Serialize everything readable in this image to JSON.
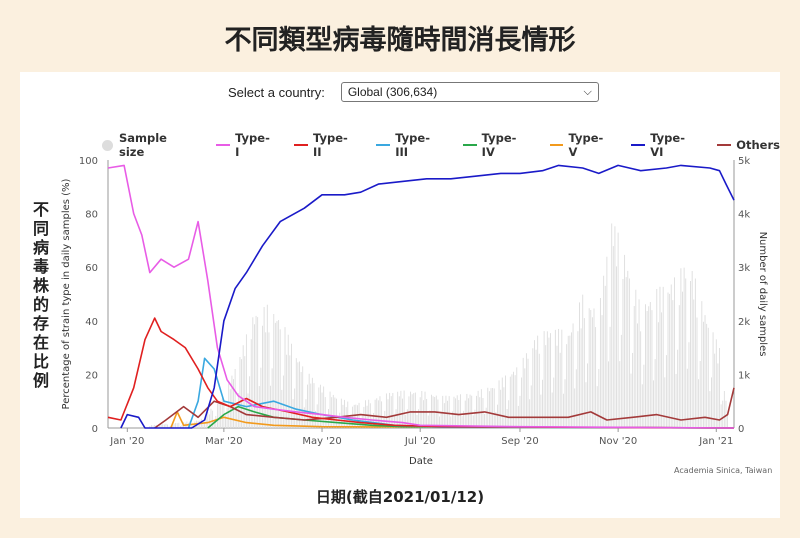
{
  "page_title": "不同類型病毒隨時間消長情形",
  "selector": {
    "label": "Select a country:",
    "value": "Global (306,634)"
  },
  "side_label": [
    "不",
    "同",
    "病",
    "毒",
    "株",
    "的",
    "存",
    "在",
    "比",
    "例"
  ],
  "credit": "Academia Sinica, Taiwan",
  "date_caption": "日期(截自2021/01/12)",
  "colors": {
    "sample_size": "#dddddd",
    "type_i": "#e85ce6",
    "type_ii": "#e02020",
    "type_iii": "#3aa8e0",
    "type_iv": "#2aa84a",
    "type_v": "#f29a1c",
    "type_vi": "#1a1ac8",
    "others": "#a33a3a"
  },
  "chart_data": {
    "type": "line",
    "xlabel": "Date",
    "ylabel_left": "Percentage of strain type in daily samples (%)",
    "ylabel_right": "Number of daily samples",
    "x_range": [
      "2019-12-20",
      "2021-01-12"
    ],
    "y_left_range": [
      0,
      100
    ],
    "y_right_range": [
      0,
      5000
    ],
    "x_ticks": [
      "Jan '20",
      "Mar '20",
      "May '20",
      "Jul '20",
      "Sep '20",
      "Nov '20",
      "Jan '21"
    ],
    "y_left_ticks": [
      "0",
      "20",
      "40",
      "60",
      "80",
      "100"
    ],
    "y_right_ticks": [
      "0",
      "1k",
      "2k",
      "3k",
      "4k",
      "5k"
    ],
    "legend": [
      "Sample size",
      "Type-I",
      "Type-II",
      "Type-III",
      "Type-IV",
      "Type-V",
      "Type-VI",
      "Others"
    ],
    "legend_position": "top",
    "grid": false,
    "series": [
      {
        "name": "Type-I",
        "color_key": "type_i",
        "points": [
          [
            "2019-12-20",
            97
          ],
          [
            "2019-12-30",
            98
          ],
          [
            "2020-01-05",
            80
          ],
          [
            "2020-01-10",
            72
          ],
          [
            "2020-01-15",
            58
          ],
          [
            "2020-01-22",
            63
          ],
          [
            "2020-01-30",
            60
          ],
          [
            "2020-02-08",
            63
          ],
          [
            "2020-02-14",
            77
          ],
          [
            "2020-02-20",
            55
          ],
          [
            "2020-02-26",
            30
          ],
          [
            "2020-03-03",
            18
          ],
          [
            "2020-03-10",
            12
          ],
          [
            "2020-03-20",
            8
          ],
          [
            "2020-04-01",
            7
          ],
          [
            "2020-04-15",
            6
          ],
          [
            "2020-05-01",
            5
          ],
          [
            "2020-05-15",
            4
          ],
          [
            "2020-06-01",
            3
          ],
          [
            "2020-06-20",
            2
          ],
          [
            "2020-07-01",
            1
          ],
          [
            "2020-09-01",
            0.5
          ],
          [
            "2021-01-12",
            0
          ]
        ]
      },
      {
        "name": "Type-II",
        "color_key": "type_ii",
        "points": [
          [
            "2019-12-20",
            4
          ],
          [
            "2019-12-28",
            3
          ],
          [
            "2020-01-05",
            15
          ],
          [
            "2020-01-12",
            33
          ],
          [
            "2020-01-18",
            41
          ],
          [
            "2020-01-22",
            36
          ],
          [
            "2020-01-30",
            33
          ],
          [
            "2020-02-06",
            30
          ],
          [
            "2020-02-14",
            22
          ],
          [
            "2020-02-20",
            15
          ],
          [
            "2020-02-26",
            10
          ],
          [
            "2020-03-05",
            8
          ],
          [
            "2020-03-15",
            11
          ],
          [
            "2020-03-25",
            8
          ],
          [
            "2020-04-10",
            6
          ],
          [
            "2020-04-25",
            4
          ],
          [
            "2020-05-10",
            3
          ],
          [
            "2020-05-25",
            2
          ],
          [
            "2020-06-15",
            1
          ],
          [
            "2020-07-15",
            0.5
          ],
          [
            "2021-01-12",
            0
          ]
        ]
      },
      {
        "name": "Type-III",
        "color_key": "type_iii",
        "points": [
          [
            "2020-02-08",
            0
          ],
          [
            "2020-02-14",
            10
          ],
          [
            "2020-02-18",
            26
          ],
          [
            "2020-02-24",
            22
          ],
          [
            "2020-03-01",
            10
          ],
          [
            "2020-03-15",
            8
          ],
          [
            "2020-04-01",
            10
          ],
          [
            "2020-04-15",
            7
          ],
          [
            "2020-05-01",
            5
          ],
          [
            "2020-05-20",
            3
          ],
          [
            "2020-06-15",
            1
          ],
          [
            "2020-07-15",
            0.3
          ],
          [
            "2021-01-12",
            0
          ]
        ]
      },
      {
        "name": "Type-IV",
        "color_key": "type_iv",
        "points": [
          [
            "2020-02-20",
            0
          ],
          [
            "2020-03-01",
            5
          ],
          [
            "2020-03-10",
            8
          ],
          [
            "2020-03-20",
            6
          ],
          [
            "2020-04-01",
            4
          ],
          [
            "2020-04-20",
            3
          ],
          [
            "2020-05-10",
            2
          ],
          [
            "2020-06-01",
            1
          ],
          [
            "2020-06-20",
            0.5
          ],
          [
            "2021-01-12",
            0
          ]
        ]
      },
      {
        "name": "Type-V",
        "color_key": "type_v",
        "points": [
          [
            "2020-01-28",
            0
          ],
          [
            "2020-02-01",
            6
          ],
          [
            "2020-02-05",
            1
          ],
          [
            "2020-02-20",
            2
          ],
          [
            "2020-03-01",
            4
          ],
          [
            "2020-03-15",
            2
          ],
          [
            "2020-04-01",
            1
          ],
          [
            "2020-05-01",
            0.5
          ],
          [
            "2021-01-12",
            0
          ]
        ]
      },
      {
        "name": "Type-VI",
        "color_key": "type_vi",
        "points": [
          [
            "2019-12-28",
            0
          ],
          [
            "2020-01-01",
            5
          ],
          [
            "2020-01-08",
            4
          ],
          [
            "2020-01-12",
            0
          ],
          [
            "2020-02-10",
            0
          ],
          [
            "2020-02-18",
            3
          ],
          [
            "2020-02-24",
            15
          ],
          [
            "2020-03-01",
            40
          ],
          [
            "2020-03-08",
            52
          ],
          [
            "2020-03-15",
            58
          ],
          [
            "2020-03-25",
            68
          ],
          [
            "2020-04-05",
            77
          ],
          [
            "2020-04-20",
            82
          ],
          [
            "2020-05-01",
            87
          ],
          [
            "2020-05-15",
            87
          ],
          [
            "2020-05-25",
            88
          ],
          [
            "2020-06-05",
            91
          ],
          [
            "2020-06-20",
            92
          ],
          [
            "2020-07-05",
            93
          ],
          [
            "2020-07-20",
            93
          ],
          [
            "2020-08-05",
            94
          ],
          [
            "2020-08-20",
            95
          ],
          [
            "2020-09-01",
            95
          ],
          [
            "2020-09-15",
            96
          ],
          [
            "2020-09-25",
            98
          ],
          [
            "2020-10-10",
            97
          ],
          [
            "2020-10-20",
            95
          ],
          [
            "2020-11-01",
            98
          ],
          [
            "2020-11-15",
            96
          ],
          [
            "2020-12-01",
            97
          ],
          [
            "2020-12-10",
            98
          ],
          [
            "2020-12-28",
            97
          ],
          [
            "2021-01-03",
            96
          ],
          [
            "2021-01-07",
            91
          ],
          [
            "2021-01-12",
            85
          ]
        ]
      },
      {
        "name": "Others",
        "color_key": "others",
        "points": [
          [
            "2020-01-18",
            0
          ],
          [
            "2020-01-25",
            3
          ],
          [
            "2020-02-05",
            8
          ],
          [
            "2020-02-14",
            4
          ],
          [
            "2020-02-24",
            10
          ],
          [
            "2020-03-05",
            8
          ],
          [
            "2020-03-15",
            5
          ],
          [
            "2020-04-01",
            4
          ],
          [
            "2020-04-20",
            3
          ],
          [
            "2020-05-10",
            4
          ],
          [
            "2020-05-25",
            5
          ],
          [
            "2020-06-10",
            4
          ],
          [
            "2020-06-25",
            6
          ],
          [
            "2020-07-10",
            6
          ],
          [
            "2020-07-25",
            5
          ],
          [
            "2020-08-10",
            6
          ],
          [
            "2020-08-25",
            4
          ],
          [
            "2020-09-15",
            4
          ],
          [
            "2020-10-01",
            4
          ],
          [
            "2020-10-15",
            6
          ],
          [
            "2020-10-25",
            3
          ],
          [
            "2020-11-10",
            4
          ],
          [
            "2020-11-25",
            5
          ],
          [
            "2020-12-10",
            3
          ],
          [
            "2020-12-25",
            4
          ],
          [
            "2021-01-03",
            3
          ],
          [
            "2021-01-08",
            5
          ],
          [
            "2021-01-12",
            15
          ]
        ]
      }
    ],
    "sample_size": {
      "name": "Sample size",
      "color_key": "sample_size",
      "points": [
        [
          "2020-01-15",
          50
        ],
        [
          "2020-02-01",
          100
        ],
        [
          "2020-02-15",
          150
        ],
        [
          "2020-03-01",
          600
        ],
        [
          "2020-03-10",
          1300
        ],
        [
          "2020-03-20",
          2200
        ],
        [
          "2020-03-28",
          2300
        ],
        [
          "2020-04-05",
          2100
        ],
        [
          "2020-04-12",
          1600
        ],
        [
          "2020-04-20",
          1100
        ],
        [
          "2020-05-01",
          800
        ],
        [
          "2020-05-10",
          600
        ],
        [
          "2020-05-20",
          450
        ],
        [
          "2020-06-01",
          550
        ],
        [
          "2020-06-15",
          700
        ],
        [
          "2020-07-01",
          700
        ],
        [
          "2020-07-15",
          600
        ],
        [
          "2020-08-01",
          650
        ],
        [
          "2020-08-15",
          800
        ],
        [
          "2020-09-01",
          1200
        ],
        [
          "2020-09-10",
          1700
        ],
        [
          "2020-09-20",
          1900
        ],
        [
          "2020-10-01",
          1800
        ],
        [
          "2020-10-10",
          2500
        ],
        [
          "2020-10-20",
          2200
        ],
        [
          "2020-10-28",
          4000
        ],
        [
          "2020-11-05",
          3300
        ],
        [
          "2020-11-15",
          2300
        ],
        [
          "2020-11-25",
          2600
        ],
        [
          "2020-12-05",
          2800
        ],
        [
          "2020-12-15",
          3200
        ],
        [
          "2020-12-25",
          2200
        ],
        [
          "2021-01-03",
          1500
        ],
        [
          "2021-01-08",
          300
        ]
      ]
    }
  }
}
